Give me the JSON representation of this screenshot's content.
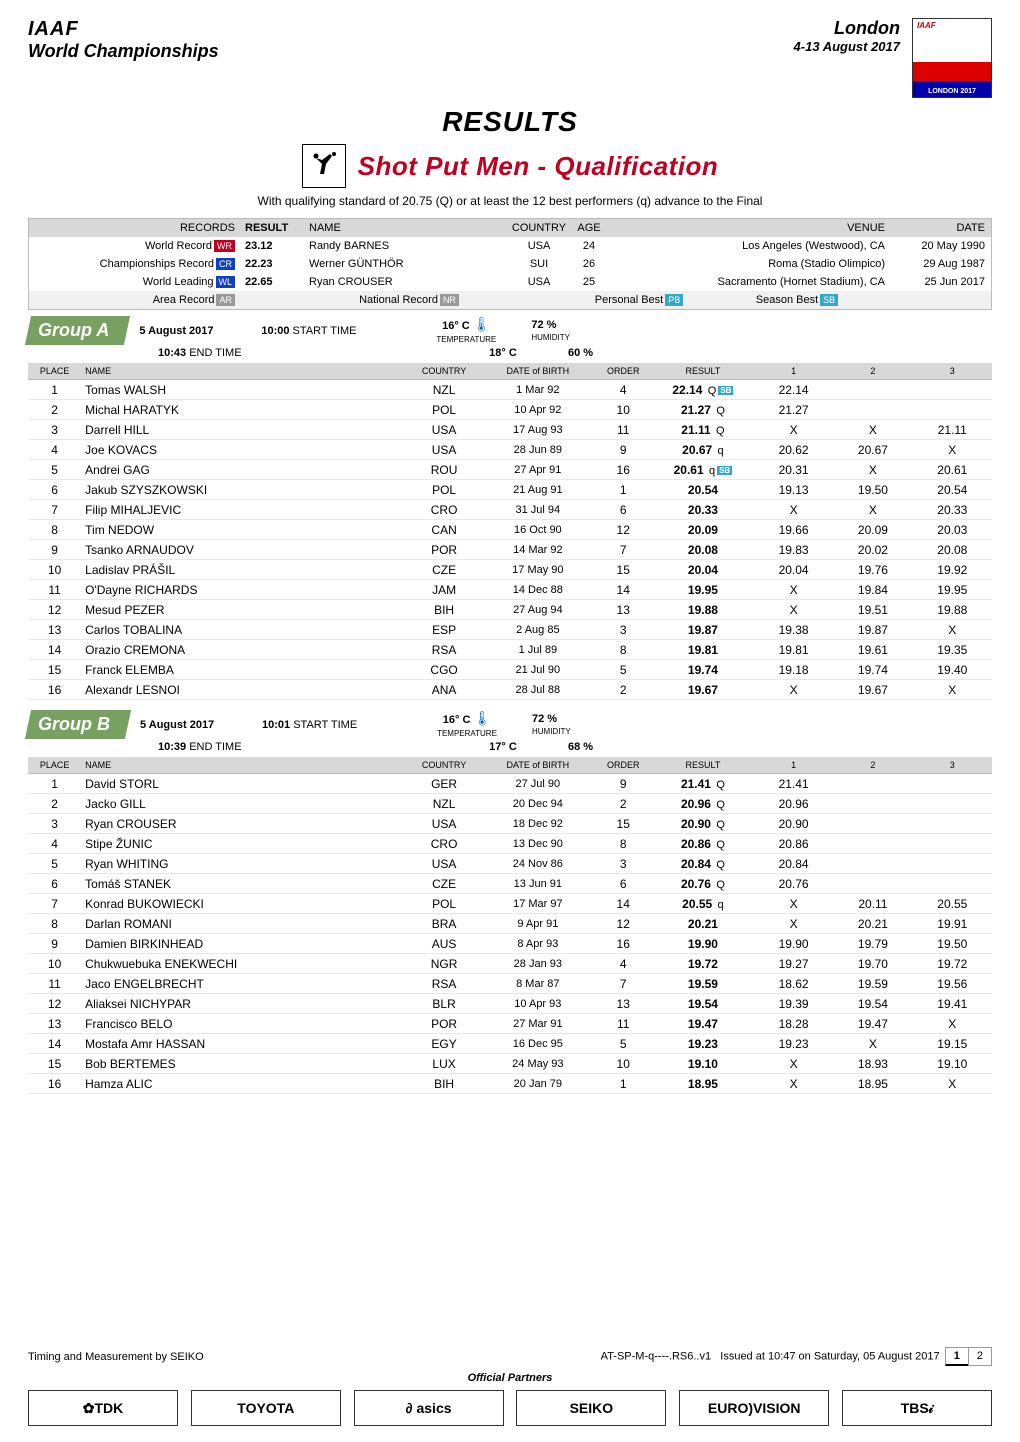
{
  "header": {
    "org": "IAAF",
    "event": "World Championships",
    "city": "London",
    "dates": "4-13 August 2017",
    "results_title": "RESULTS",
    "discipline": "Shot Put Men - Qualification",
    "qual_note": "With qualifying standard of 20.75 (Q) or at least the 12 best performers (q) advance to the Final"
  },
  "records": {
    "header_left": "RECORDS",
    "header_result": "RESULT",
    "header_name": "NAME",
    "header_country": "COUNTRY",
    "header_age": "AGE",
    "header_venue": "VENUE",
    "header_date": "DATE",
    "rows": [
      {
        "label": "World Record",
        "tag": "WR",
        "tagcls": "tag-red",
        "val": "23.12",
        "name": "Randy BARNES",
        "ctry": "USA",
        "age": "24",
        "venue": "Los Angeles (Westwood), CA",
        "date": "20 May 1990"
      },
      {
        "label": "Championships Record",
        "tag": "CR",
        "tagcls": "tag-blue",
        "val": "22.23",
        "name": "Werner GÜNTHÖR",
        "ctry": "SUI",
        "age": "26",
        "venue": "Roma (Stadio Olimpico)",
        "date": "29 Aug 1987"
      },
      {
        "label": "World Leading",
        "tag": "WL",
        "tagcls": "tag-blue",
        "val": "22.65",
        "name": "Ryan CROUSER",
        "ctry": "USA",
        "age": "25",
        "venue": "Sacramento (Hornet Stadium), CA",
        "date": "25 Jun 2017"
      },
      {
        "label": "Area Record",
        "tag": "AR",
        "tagcls": "tag-gray",
        "val": "",
        "name": "",
        "ctry": "",
        "age": "",
        "venue": "",
        "date": ""
      }
    ],
    "nr_label": "National Record",
    "nr_tag": "NR",
    "pb_label": "Personal Best",
    "pb_tag": "PB",
    "sb_label": "Season Best",
    "sb_tag": "SB"
  },
  "columns": {
    "place": "PLACE",
    "name": "NAME",
    "country": "COUNTRY",
    "dob": "DATE of BIRTH",
    "order": "ORDER",
    "result": "RESULT",
    "a1": "1",
    "a2": "2",
    "a3": "3"
  },
  "groupA": {
    "name": "Group A",
    "date": "5 August 2017",
    "start_label": "START TIME",
    "start": "10:00",
    "end_label": "END TIME",
    "end": "10:43",
    "temp_hi": "16° C",
    "hum_hi": "72 %",
    "temp_lo": "18° C",
    "hum_lo": "60 %",
    "temp_label": "TEMPERATURE",
    "hum_label": "HUMIDITY",
    "rows": [
      {
        "pl": "1",
        "first": "Tomas",
        "last": "WALSH",
        "ctry": "NZL",
        "dob": "1 Mar 92",
        "ord": "4",
        "res": "22.14",
        "q": "Q",
        "sb": true,
        "a1": "22.14",
        "a2": "",
        "a3": ""
      },
      {
        "pl": "2",
        "first": "Michal",
        "last": "HARATYK",
        "ctry": "POL",
        "dob": "10 Apr 92",
        "ord": "10",
        "res": "21.27",
        "q": "Q",
        "sb": false,
        "a1": "21.27",
        "a2": "",
        "a3": ""
      },
      {
        "pl": "3",
        "first": "Darrell",
        "last": "HILL",
        "ctry": "USA",
        "dob": "17 Aug 93",
        "ord": "11",
        "res": "21.11",
        "q": "Q",
        "sb": false,
        "a1": "X",
        "a2": "X",
        "a3": "21.11"
      },
      {
        "pl": "4",
        "first": "Joe",
        "last": "KOVACS",
        "ctry": "USA",
        "dob": "28 Jun 89",
        "ord": "9",
        "res": "20.67",
        "q": "q",
        "sb": false,
        "a1": "20.62",
        "a2": "20.67",
        "a3": "X"
      },
      {
        "pl": "5",
        "first": "Andrei",
        "last": "GAG",
        "ctry": "ROU",
        "dob": "27 Apr 91",
        "ord": "16",
        "res": "20.61",
        "q": "q",
        "sb": true,
        "a1": "20.31",
        "a2": "X",
        "a3": "20.61"
      },
      {
        "pl": "6",
        "first": "Jakub",
        "last": "SZYSZKOWSKI",
        "ctry": "POL",
        "dob": "21 Aug 91",
        "ord": "1",
        "res": "20.54",
        "q": "",
        "sb": false,
        "a1": "19.13",
        "a2": "19.50",
        "a3": "20.54"
      },
      {
        "pl": "7",
        "first": "Filip",
        "last": "MIHALJEVIC",
        "ctry": "CRO",
        "dob": "31 Jul 94",
        "ord": "6",
        "res": "20.33",
        "q": "",
        "sb": false,
        "a1": "X",
        "a2": "X",
        "a3": "20.33"
      },
      {
        "pl": "8",
        "first": "Tim",
        "last": "NEDOW",
        "ctry": "CAN",
        "dob": "16 Oct 90",
        "ord": "12",
        "res": "20.09",
        "q": "",
        "sb": false,
        "a1": "19.66",
        "a2": "20.09",
        "a3": "20.03"
      },
      {
        "pl": "9",
        "first": "Tsanko",
        "last": "ARNAUDOV",
        "ctry": "POR",
        "dob": "14 Mar 92",
        "ord": "7",
        "res": "20.08",
        "q": "",
        "sb": false,
        "a1": "19.83",
        "a2": "20.02",
        "a3": "20.08"
      },
      {
        "pl": "10",
        "first": "Ladislav",
        "last": "PRÁŠIL",
        "ctry": "CZE",
        "dob": "17 May 90",
        "ord": "15",
        "res": "20.04",
        "q": "",
        "sb": false,
        "a1": "20.04",
        "a2": "19.76",
        "a3": "19.92"
      },
      {
        "pl": "11",
        "first": "O'Dayne",
        "last": "RICHARDS",
        "ctry": "JAM",
        "dob": "14 Dec 88",
        "ord": "14",
        "res": "19.95",
        "q": "",
        "sb": false,
        "a1": "X",
        "a2": "19.84",
        "a3": "19.95"
      },
      {
        "pl": "12",
        "first": "Mesud",
        "last": "PEZER",
        "ctry": "BIH",
        "dob": "27 Aug 94",
        "ord": "13",
        "res": "19.88",
        "q": "",
        "sb": false,
        "a1": "X",
        "a2": "19.51",
        "a3": "19.88"
      },
      {
        "pl": "13",
        "first": "Carlos",
        "last": "TOBALINA",
        "ctry": "ESP",
        "dob": "2 Aug 85",
        "ord": "3",
        "res": "19.87",
        "q": "",
        "sb": false,
        "a1": "19.38",
        "a2": "19.87",
        "a3": "X"
      },
      {
        "pl": "14",
        "first": "Orazio",
        "last": "CREMONA",
        "ctry": "RSA",
        "dob": "1 Jul 89",
        "ord": "8",
        "res": "19.81",
        "q": "",
        "sb": false,
        "a1": "19.81",
        "a2": "19.61",
        "a3": "19.35"
      },
      {
        "pl": "15",
        "first": "Franck",
        "last": "ELEMBA",
        "ctry": "CGO",
        "dob": "21 Jul 90",
        "ord": "5",
        "res": "19.74",
        "q": "",
        "sb": false,
        "a1": "19.18",
        "a2": "19.74",
        "a3": "19.40"
      },
      {
        "pl": "16",
        "first": "Alexandr",
        "last": "LESNOI",
        "ctry": "ANA",
        "dob": "28 Jul 88",
        "ord": "2",
        "res": "19.67",
        "q": "",
        "sb": false,
        "a1": "X",
        "a2": "19.67",
        "a3": "X"
      }
    ]
  },
  "groupB": {
    "name": "Group B",
    "date": "5 August 2017",
    "start_label": "START TIME",
    "start": "10:01",
    "end_label": "END TIME",
    "end": "10:39",
    "temp_hi": "16° C",
    "hum_hi": "72 %",
    "temp_lo": "17° C",
    "hum_lo": "68 %",
    "temp_label": "TEMPERATURE",
    "hum_label": "HUMIDITY",
    "rows": [
      {
        "pl": "1",
        "first": "David",
        "last": "STORL",
        "ctry": "GER",
        "dob": "27 Jul 90",
        "ord": "9",
        "res": "21.41",
        "q": "Q",
        "sb": false,
        "a1": "21.41",
        "a2": "",
        "a3": ""
      },
      {
        "pl": "2",
        "first": "Jacko",
        "last": "GILL",
        "ctry": "NZL",
        "dob": "20 Dec 94",
        "ord": "2",
        "res": "20.96",
        "q": "Q",
        "sb": false,
        "a1": "20.96",
        "a2": "",
        "a3": ""
      },
      {
        "pl": "3",
        "first": "Ryan",
        "last": "CROUSER",
        "ctry": "USA",
        "dob": "18 Dec 92",
        "ord": "15",
        "res": "20.90",
        "q": "Q",
        "sb": false,
        "a1": "20.90",
        "a2": "",
        "a3": ""
      },
      {
        "pl": "4",
        "first": "Stipe",
        "last": "ŽUNIC",
        "ctry": "CRO",
        "dob": "13 Dec 90",
        "ord": "8",
        "res": "20.86",
        "q": "Q",
        "sb": false,
        "a1": "20.86",
        "a2": "",
        "a3": ""
      },
      {
        "pl": "5",
        "first": "Ryan",
        "last": "WHITING",
        "ctry": "USA",
        "dob": "24 Nov 86",
        "ord": "3",
        "res": "20.84",
        "q": "Q",
        "sb": false,
        "a1": "20.84",
        "a2": "",
        "a3": ""
      },
      {
        "pl": "6",
        "first": "Tomáš",
        "last": "STANEK",
        "ctry": "CZE",
        "dob": "13 Jun 91",
        "ord": "6",
        "res": "20.76",
        "q": "Q",
        "sb": false,
        "a1": "20.76",
        "a2": "",
        "a3": ""
      },
      {
        "pl": "7",
        "first": "Konrad",
        "last": "BUKOWIECKI",
        "ctry": "POL",
        "dob": "17 Mar 97",
        "ord": "14",
        "res": "20.55",
        "q": "q",
        "sb": false,
        "a1": "X",
        "a2": "20.11",
        "a3": "20.55"
      },
      {
        "pl": "8",
        "first": "Darlan",
        "last": "ROMANI",
        "ctry": "BRA",
        "dob": "9 Apr 91",
        "ord": "12",
        "res": "20.21",
        "q": "",
        "sb": false,
        "a1": "X",
        "a2": "20.21",
        "a3": "19.91"
      },
      {
        "pl": "9",
        "first": "Damien",
        "last": "BIRKINHEAD",
        "ctry": "AUS",
        "dob": "8 Apr 93",
        "ord": "16",
        "res": "19.90",
        "q": "",
        "sb": false,
        "a1": "19.90",
        "a2": "19.79",
        "a3": "19.50"
      },
      {
        "pl": "10",
        "first": "Chukwuebuka",
        "last": "ENEKWECHI",
        "ctry": "NGR",
        "dob": "28 Jan 93",
        "ord": "4",
        "res": "19.72",
        "q": "",
        "sb": false,
        "a1": "19.27",
        "a2": "19.70",
        "a3": "19.72"
      },
      {
        "pl": "11",
        "first": "Jaco",
        "last": "ENGELBRECHT",
        "ctry": "RSA",
        "dob": "8 Mar 87",
        "ord": "7",
        "res": "19.59",
        "q": "",
        "sb": false,
        "a1": "18.62",
        "a2": "19.59",
        "a3": "19.56"
      },
      {
        "pl": "12",
        "first": "Aliaksei",
        "last": "NICHYPAR",
        "ctry": "BLR",
        "dob": "10 Apr 93",
        "ord": "13",
        "res": "19.54",
        "q": "",
        "sb": false,
        "a1": "19.39",
        "a2": "19.54",
        "a3": "19.41"
      },
      {
        "pl": "13",
        "first": "Francisco",
        "last": "BELO",
        "ctry": "POR",
        "dob": "27 Mar 91",
        "ord": "11",
        "res": "19.47",
        "q": "",
        "sb": false,
        "a1": "18.28",
        "a2": "19.47",
        "a3": "X"
      },
      {
        "pl": "14",
        "first": "Mostafa Amr",
        "last": "HASSAN",
        "ctry": "EGY",
        "dob": "16 Dec 95",
        "ord": "5",
        "res": "19.23",
        "q": "",
        "sb": false,
        "a1": "19.23",
        "a2": "X",
        "a3": "19.15"
      },
      {
        "pl": "15",
        "first": "Bob",
        "last": "BERTEMES",
        "ctry": "LUX",
        "dob": "24 May 93",
        "ord": "10",
        "res": "19.10",
        "q": "",
        "sb": false,
        "a1": "X",
        "a2": "18.93",
        "a3": "19.10"
      },
      {
        "pl": "16",
        "first": "Hamza",
        "last": "ALIC",
        "ctry": "BIH",
        "dob": "20 Jan 79",
        "ord": "1",
        "res": "18.95",
        "q": "",
        "sb": false,
        "a1": "X",
        "a2": "18.95",
        "a3": "X"
      }
    ]
  },
  "footer": {
    "timing": "Timing and Measurement by SEIKO",
    "code": "AT-SP-M-q----.RS6..v1",
    "issued": "Issued at 10:47 on Saturday, 05 August 2017",
    "page_active": "1",
    "page_next": "2",
    "official": "Official Partners",
    "partners": [
      "✿TDK",
      "TOYOTA",
      "∂ asics",
      "SEIKO",
      "EURO)VISION",
      "TBS𝒾"
    ]
  }
}
